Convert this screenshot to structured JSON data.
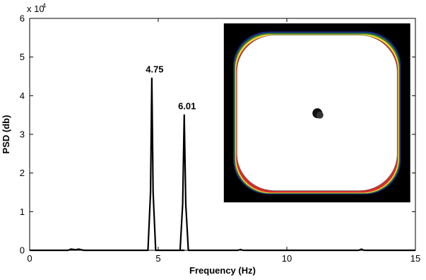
{
  "chart_data": {
    "type": "line",
    "xlabel": "Frequency (Hz)",
    "ylabel": "PSD (db)",
    "xlim": [
      0,
      15
    ],
    "ylim": [
      0,
      60000
    ],
    "x_ticks": [
      0,
      5,
      10,
      15
    ],
    "y_ticks": [
      0,
      1,
      2,
      3,
      4,
      5,
      6
    ],
    "y_exponent_label": "x 10",
    "y_exponent_power": "4",
    "grid": false,
    "series": [
      {
        "x": [
          0,
          1.5,
          1.6,
          1.8,
          1.9,
          2.1,
          3.5,
          4.6,
          4.7,
          4.75,
          4.8,
          4.9,
          5.0,
          6.0,
          5.85,
          5.95,
          6.01,
          6.07,
          6.17,
          6.3,
          7.0,
          8.1,
          8.2,
          8.3,
          9.2,
          10.5,
          12.8,
          12.9,
          13.0,
          15.0
        ],
        "y": [
          0,
          0,
          300,
          150,
          300,
          0,
          0,
          0,
          15000,
          44500,
          15000,
          0,
          0,
          0,
          0,
          12000,
          35000,
          12000,
          0,
          0,
          0,
          0,
          200,
          0,
          0,
          0,
          0,
          300,
          0,
          0
        ]
      }
    ],
    "annotations": [
      {
        "text": "4.75",
        "x": 4.75,
        "y": 44500
      },
      {
        "text": "6.01",
        "x": 6.01,
        "y": 35000
      }
    ],
    "inset": {
      "type": "image",
      "description_colors": [
        "#000000",
        "#ffffff",
        "#1a237e",
        "#d32f2f",
        "#fdd835",
        "#2e7d32"
      ],
      "x_range": [
        7.55,
        14.8
      ],
      "y_range": [
        12400,
        58700
      ]
    }
  }
}
